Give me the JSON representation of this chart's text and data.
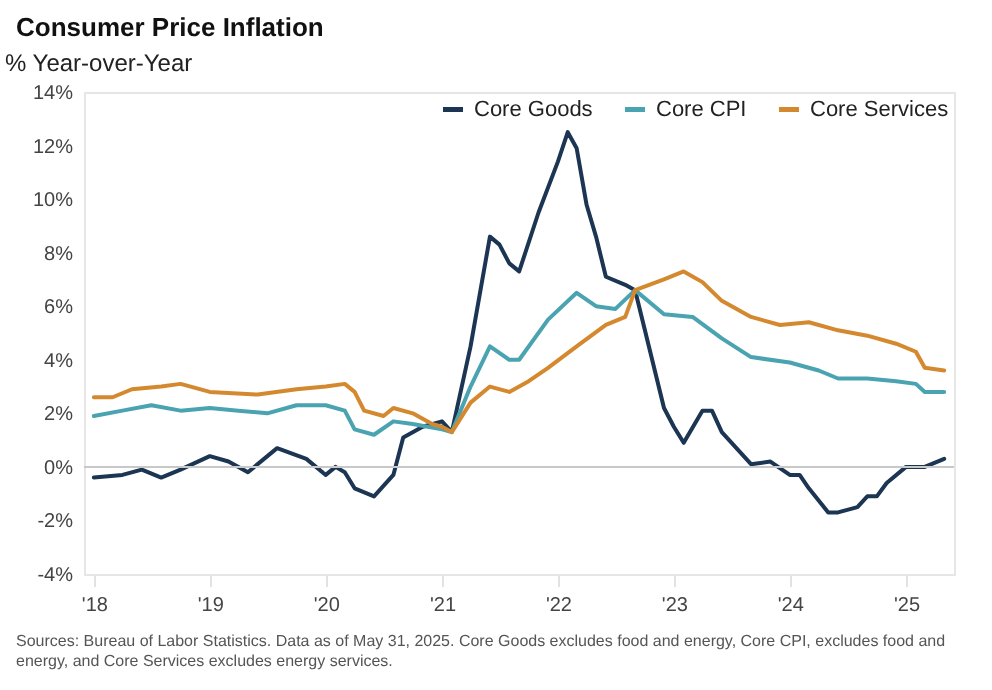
{
  "chart_data": {
    "type": "line",
    "title": "Consumer Price Inflation",
    "ylabel": "% Year-over-Year",
    "annotations": [
      "Sources: Bureau of Labor Statistics. Data as of May 31, 2025. Core Goods excludes food and energy, Core CPI, excludes food and energy, and Core Services excludes energy services."
    ],
    "series": [
      {
        "name": "Core Goods",
        "color": "#1b3553",
        "x": [
          "2018-01",
          "2018-04",
          "2018-06",
          "2018-08",
          "2018-10",
          "2019-01",
          "2019-03",
          "2019-05",
          "2019-08",
          "2019-11",
          "2020-01",
          "2020-02",
          "2020-03",
          "2020-04",
          "2020-06",
          "2020-08",
          "2020-09",
          "2020-11",
          "2021-01",
          "2021-02",
          "2021-04",
          "2021-06",
          "2021-07",
          "2021-08",
          "2021-09",
          "2021-11",
          "2022-01",
          "2022-02",
          "2022-03",
          "2022-04",
          "2022-05",
          "2022-06",
          "2022-08",
          "2022-09",
          "2022-12",
          "2023-01",
          "2023-02",
          "2023-04",
          "2023-05",
          "2023-06",
          "2023-09",
          "2023-11",
          "2024-01",
          "2024-02",
          "2024-03",
          "2024-05",
          "2024-06",
          "2024-08",
          "2024-09",
          "2024-10",
          "2024-11",
          "2025-01",
          "2025-03",
          "2025-05"
        ],
        "values": [
          -0.4,
          -0.3,
          -0.1,
          -0.4,
          -0.1,
          0.4,
          0.2,
          -0.2,
          0.7,
          0.3,
          -0.3,
          0.0,
          -0.2,
          -0.8,
          -1.1,
          -0.3,
          1.1,
          1.5,
          1.7,
          1.3,
          4.5,
          8.6,
          8.3,
          7.6,
          7.3,
          9.5,
          11.4,
          12.5,
          11.9,
          9.8,
          8.6,
          7.1,
          6.8,
          6.6,
          2.2,
          1.5,
          0.9,
          2.1,
          2.1,
          1.3,
          0.1,
          0.2,
          -0.3,
          -0.3,
          -0.8,
          -1.7,
          -1.7,
          -1.5,
          -1.1,
          -1.1,
          -0.6,
          0.0,
          0.0,
          0.3
        ]
      },
      {
        "name": "Core CPI",
        "color": "#4aa3b0",
        "x": [
          "2018-01",
          "2018-04",
          "2018-07",
          "2018-10",
          "2019-01",
          "2019-04",
          "2019-07",
          "2019-10",
          "2020-01",
          "2020-03",
          "2020-04",
          "2020-06",
          "2020-08",
          "2020-10",
          "2021-01",
          "2021-02",
          "2021-04",
          "2021-06",
          "2021-08",
          "2021-09",
          "2021-12",
          "2022-03",
          "2022-05",
          "2022-07",
          "2022-09",
          "2022-12",
          "2023-03",
          "2023-06",
          "2023-09",
          "2024-01",
          "2024-04",
          "2024-06",
          "2024-09",
          "2024-12",
          "2025-02",
          "2025-03",
          "2025-05"
        ],
        "values": [
          1.9,
          2.1,
          2.3,
          2.1,
          2.2,
          2.1,
          2.0,
          2.3,
          2.3,
          2.1,
          1.4,
          1.2,
          1.7,
          1.6,
          1.4,
          1.3,
          3.0,
          4.5,
          4.0,
          4.0,
          5.5,
          6.5,
          6.0,
          5.9,
          6.6,
          5.7,
          5.6,
          4.8,
          4.1,
          3.9,
          3.6,
          3.3,
          3.3,
          3.2,
          3.1,
          2.8,
          2.8
        ]
      },
      {
        "name": "Core Services",
        "color": "#d4892f",
        "x": [
          "2018-01",
          "2018-03",
          "2018-05",
          "2018-08",
          "2018-10",
          "2019-01",
          "2019-06",
          "2019-10",
          "2020-01",
          "2020-03",
          "2020-04",
          "2020-05",
          "2020-07",
          "2020-08",
          "2020-10",
          "2020-12",
          "2021-01",
          "2021-02",
          "2021-04",
          "2021-06",
          "2021-08",
          "2021-10",
          "2021-12",
          "2022-03",
          "2022-06",
          "2022-08",
          "2022-09",
          "2022-12",
          "2023-02",
          "2023-04",
          "2023-06",
          "2023-09",
          "2023-12",
          "2024-03",
          "2024-06",
          "2024-09",
          "2024-12",
          "2025-02",
          "2025-03",
          "2025-05"
        ],
        "values": [
          2.6,
          2.6,
          2.9,
          3.0,
          3.1,
          2.8,
          2.7,
          2.9,
          3.0,
          3.1,
          2.8,
          2.1,
          1.9,
          2.2,
          2.0,
          1.6,
          1.5,
          1.3,
          2.4,
          3.0,
          2.8,
          3.2,
          3.7,
          4.5,
          5.3,
          5.6,
          6.6,
          7.0,
          7.3,
          6.9,
          6.2,
          5.6,
          5.3,
          5.4,
          5.1,
          4.9,
          4.6,
          4.3,
          3.7,
          3.6
        ]
      }
    ],
    "xlim": [
      "2017-12",
      "2025-06"
    ],
    "xticks": [
      {
        "value": "2018-01",
        "label": "'18"
      },
      {
        "value": "2019-01",
        "label": "'19"
      },
      {
        "value": "2020-01",
        "label": "'20"
      },
      {
        "value": "2021-01",
        "label": "'21"
      },
      {
        "value": "2022-01",
        "label": "'22"
      },
      {
        "value": "2023-01",
        "label": "'23"
      },
      {
        "value": "2024-01",
        "label": "'24"
      },
      {
        "value": "2025-01",
        "label": "'25"
      }
    ],
    "ylim": [
      -4,
      14
    ],
    "yticks": [
      {
        "value": -4,
        "label": "-4%"
      },
      {
        "value": -2,
        "label": "-2%"
      },
      {
        "value": 0,
        "label": "0%"
      },
      {
        "value": 2,
        "label": "2%"
      },
      {
        "value": 4,
        "label": "4%"
      },
      {
        "value": 6,
        "label": "6%"
      },
      {
        "value": 8,
        "label": "8%"
      },
      {
        "value": 10,
        "label": "10%"
      },
      {
        "value": 12,
        "label": "12%"
      },
      {
        "value": 14,
        "label": "14%"
      }
    ],
    "ref_lines": [
      {
        "axis": "y",
        "value": 0,
        "color": "#c8c8c8"
      }
    ],
    "grid": false,
    "legend": "top right",
    "line_style": "solid"
  }
}
